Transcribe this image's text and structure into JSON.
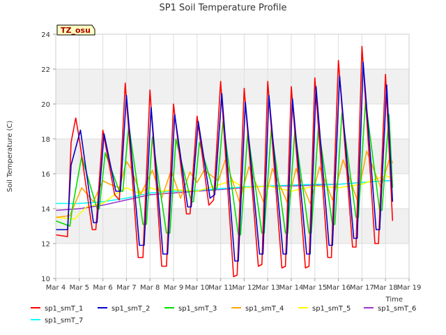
{
  "chart_data": {
    "type": "line",
    "title": "SP1 Soil Temperature Profile",
    "xlabel": "Time",
    "ylabel": "Soil Temperature (C)",
    "badge": "TZ_osu",
    "xlim": [
      4,
      19
    ],
    "ylim": [
      10,
      24
    ],
    "x_ticks": [
      {
        "v": 4,
        "label": "Mar 4"
      },
      {
        "v": 5,
        "label": "Mar 5"
      },
      {
        "v": 6,
        "label": "Mar 6"
      },
      {
        "v": 7,
        "label": "Mar 7"
      },
      {
        "v": 8,
        "label": "Mar 8"
      },
      {
        "v": 9,
        "label": "Mar 9"
      },
      {
        "v": 10,
        "label": "Mar 10"
      },
      {
        "v": 11,
        "label": "Mar 11"
      },
      {
        "v": 12,
        "label": "Mar 12"
      },
      {
        "v": 13,
        "label": "Mar 13"
      },
      {
        "v": 14,
        "label": "Mar 14"
      },
      {
        "v": 15,
        "label": "Mar 15"
      },
      {
        "v": 16,
        "label": "Mar 16"
      },
      {
        "v": 17,
        "label": "Mar 17"
      },
      {
        "v": 18,
        "label": "Mar 18"
      },
      {
        "v": 19,
        "label": "Mar 19"
      }
    ],
    "y_ticks": [
      10,
      12,
      14,
      16,
      18,
      20,
      22,
      24
    ],
    "grid": true,
    "legend_position": "bottom",
    "series": [
      {
        "name": "sp1_smT_1",
        "color": "#ff0000",
        "x": [
          4.0,
          4.5,
          4.65,
          4.85,
          5.0,
          5.55,
          5.7,
          6.0,
          6.5,
          6.7,
          6.95,
          7.5,
          7.7,
          8.0,
          8.5,
          8.7,
          9.0,
          9.55,
          9.7,
          10.0,
          10.5,
          10.7,
          11.0,
          11.55,
          11.7,
          12.0,
          12.6,
          12.75,
          13.0,
          13.6,
          13.75,
          14.0,
          14.6,
          14.75,
          15.0,
          15.55,
          15.7,
          16.0,
          16.6,
          16.75,
          17.0,
          17.55,
          17.7,
          18.0,
          18.3
        ],
        "y": [
          12.5,
          12.4,
          17.8,
          19.2,
          18.0,
          12.8,
          12.8,
          18.5,
          14.8,
          14.5,
          21.2,
          11.2,
          11.2,
          20.8,
          10.7,
          10.7,
          20.0,
          13.7,
          13.7,
          19.3,
          14.2,
          14.5,
          21.3,
          10.1,
          10.2,
          20.9,
          10.7,
          10.8,
          21.3,
          10.6,
          10.7,
          21.0,
          10.6,
          10.7,
          21.5,
          11.2,
          11.2,
          22.5,
          11.8,
          11.8,
          23.3,
          12.0,
          12.0,
          21.7,
          13.3
        ]
      },
      {
        "name": "sp1_smT_2",
        "color": "#0000cc",
        "x": [
          4.0,
          4.5,
          4.65,
          5.05,
          5.6,
          5.75,
          6.05,
          6.55,
          6.75,
          7.0,
          7.55,
          7.75,
          8.05,
          8.55,
          8.75,
          9.05,
          9.6,
          9.75,
          10.05,
          10.55,
          10.75,
          11.05,
          11.6,
          11.75,
          12.05,
          12.65,
          12.8,
          13.05,
          13.65,
          13.8,
          14.05,
          14.65,
          14.8,
          15.05,
          15.6,
          15.75,
          16.05,
          16.65,
          16.8,
          17.05,
          17.6,
          17.75,
          18.05,
          18.3
        ],
        "y": [
          12.8,
          12.8,
          16.5,
          18.5,
          13.2,
          13.2,
          18.3,
          15.0,
          15.0,
          20.5,
          11.9,
          11.9,
          19.8,
          11.4,
          11.4,
          19.4,
          14.1,
          14.1,
          19.0,
          14.6,
          14.8,
          20.6,
          11.0,
          11.0,
          20.1,
          11.4,
          11.4,
          20.5,
          11.4,
          11.4,
          20.3,
          11.4,
          11.4,
          21.0,
          11.9,
          11.9,
          21.6,
          12.3,
          12.3,
          22.4,
          12.8,
          12.8,
          21.1,
          14.4
        ]
      },
      {
        "name": "sp1_smT_3",
        "color": "#00dd00",
        "x": [
          4.0,
          4.6,
          4.7,
          5.1,
          5.75,
          5.85,
          6.1,
          6.7,
          6.85,
          7.1,
          7.7,
          7.85,
          8.1,
          8.7,
          8.85,
          9.1,
          9.75,
          9.85,
          10.1,
          10.7,
          10.85,
          11.1,
          11.75,
          11.85,
          12.15,
          12.75,
          12.85,
          13.15,
          13.75,
          13.85,
          14.15,
          14.75,
          14.85,
          15.15,
          15.75,
          15.85,
          16.15,
          16.75,
          16.85,
          17.15,
          17.75,
          17.85,
          18.15,
          18.3
        ],
        "y": [
          13.3,
          13.0,
          14.0,
          17.0,
          14.0,
          14.0,
          17.2,
          15.0,
          15.0,
          18.8,
          13.1,
          13.1,
          18.1,
          12.6,
          12.6,
          18.0,
          14.4,
          14.4,
          17.8,
          15.0,
          15.2,
          19.0,
          12.5,
          12.5,
          18.4,
          12.6,
          12.6,
          18.6,
          12.6,
          12.6,
          18.5,
          12.6,
          12.6,
          18.7,
          13.1,
          13.1,
          19.5,
          13.5,
          13.5,
          20.2,
          13.9,
          13.9,
          19.4,
          15.2
        ]
      },
      {
        "name": "sp1_smT_4",
        "color": "#ffa500",
        "x": [
          4.0,
          4.6,
          5.1,
          5.6,
          6.0,
          6.3,
          6.7,
          7.0,
          7.2,
          7.6,
          8.1,
          8.5,
          8.9,
          9.3,
          9.7,
          10.0,
          10.3,
          10.7,
          10.9,
          11.2,
          11.8,
          12.2,
          12.85,
          13.2,
          13.85,
          14.2,
          14.8,
          15.2,
          15.75,
          16.2,
          16.8,
          17.2,
          17.8,
          18.2,
          18.3
        ],
        "y": [
          13.5,
          13.6,
          15.2,
          14.4,
          15.6,
          15.4,
          15.2,
          16.7,
          16.3,
          14.8,
          16.2,
          14.6,
          16.2,
          14.6,
          16.1,
          15.5,
          16.2,
          15.8,
          15.6,
          16.8,
          14.4,
          16.4,
          14.3,
          16.3,
          14.3,
          16.3,
          14.3,
          16.4,
          14.5,
          16.8,
          14.5,
          17.3,
          15.2,
          17.0,
          16.6
        ]
      },
      {
        "name": "sp1_smT_5",
        "color": "#ffff00",
        "x": [
          4.0,
          4.8,
          5.3,
          6.0,
          6.5,
          7.0,
          7.5,
          8.0,
          8.5,
          9.0,
          10.0,
          11.0,
          11.5,
          12.0,
          13.0,
          14.0,
          15.0,
          16.0,
          17.0,
          18.0,
          18.3
        ],
        "y": [
          13.5,
          13.4,
          14.1,
          14.3,
          14.8,
          15.2,
          14.9,
          15.2,
          15.0,
          15.1,
          15.0,
          15.4,
          15.6,
          15.2,
          15.3,
          15.0,
          15.3,
          15.2,
          15.4,
          15.9,
          15.7
        ]
      },
      {
        "name": "sp1_smT_6",
        "color": "#9933cc",
        "x": [
          4.0,
          5.0,
          6.0,
          7.0,
          8.0,
          9.0,
          10.0,
          11.0,
          12.0,
          13.0,
          14.0,
          15.0,
          16.0,
          17.0,
          18.0,
          18.3
        ],
        "y": [
          13.9,
          14.0,
          14.2,
          14.5,
          14.8,
          14.9,
          15.0,
          15.1,
          15.2,
          15.3,
          15.3,
          15.35,
          15.4,
          15.5,
          15.6,
          15.6
        ]
      },
      {
        "name": "sp1_smT_7",
        "color": "#00ffff",
        "x": [
          4.0,
          5.0,
          6.0,
          7.0,
          8.0,
          9.0,
          10.0,
          11.0,
          12.0,
          13.0,
          14.0,
          15.0,
          16.0,
          17.0,
          18.0,
          18.3
        ],
        "y": [
          14.3,
          14.3,
          14.4,
          14.6,
          14.9,
          15.0,
          15.05,
          15.15,
          15.25,
          15.3,
          15.35,
          15.4,
          15.4,
          15.5,
          15.6,
          15.6
        ]
      }
    ]
  }
}
